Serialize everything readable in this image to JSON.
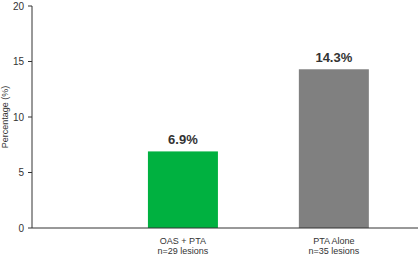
{
  "chart_data": {
    "type": "bar",
    "y_label": "Percentage (%)",
    "categories": [
      "OAS + PTA\nn=29 lesions",
      "PTA Alone\nn=35 lesions"
    ],
    "values": [
      6.9,
      14.3
    ],
    "value_labels": [
      "6.9%",
      "14.3%"
    ],
    "colors": [
      "#00b140",
      "#808080"
    ],
    "ylim": [
      0,
      20
    ],
    "yticks": [
      0,
      5,
      10,
      15,
      20
    ],
    "grid": false,
    "data_labels": true
  }
}
